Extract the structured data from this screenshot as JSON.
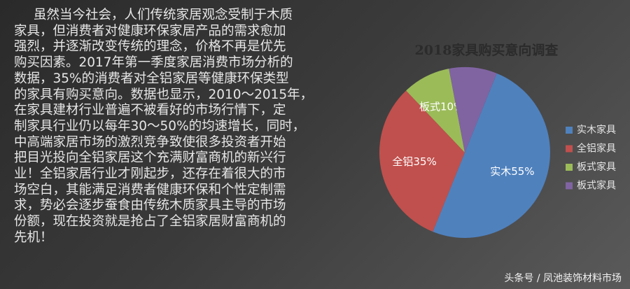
{
  "text": {
    "lines": [
      "虽然当今社会，人们传统家居观念受制于木质",
      "家具，但消费者对健康环保家居产品的需求愈加",
      "强烈，并逐渐改变传统的理念，价格不再是优先",
      "购买因素。2017年第一季度家居消费市场分析的",
      "数据，35%的消费者对全铝家居等健康环保类型",
      "的家具有购买意向。数据也显示，2010～2015年，",
      "在家具建材行业普遍不被看好的市场行情下，定",
      "制家具行业仍以每年30～50%的均速增长，同时，",
      "中高端家居市场的激烈竞争致使很多投资者开始",
      "把目光投向全铝家居这个充满财富商机的新兴行",
      "业！全铝家居行业才刚起步，还存在着很大的市",
      "场空白，其能满足消费者健康环保和个性定制需",
      "求，势必会逐步蚕食由传统木质家具主导的市场",
      "份额，现在投资就是抢占了全铝家居财富商机的",
      "先机！"
    ]
  },
  "chart_data": {
    "type": "pie",
    "title": "2018家具购买意向调查",
    "categories": [
      "实木家具",
      "全铝家具",
      "板式家具",
      "板式家具"
    ],
    "values": [
      55,
      35,
      10,
      10
    ],
    "value_labels": [
      "实木55%",
      "全铝35%",
      "板式10%",
      null
    ],
    "colors": [
      "#4f81bd",
      "#c0504d",
      "#9bbb59",
      "#8064a2"
    ],
    "legend": "right"
  },
  "footer": "头条号 / 凤池装饰材料市场"
}
